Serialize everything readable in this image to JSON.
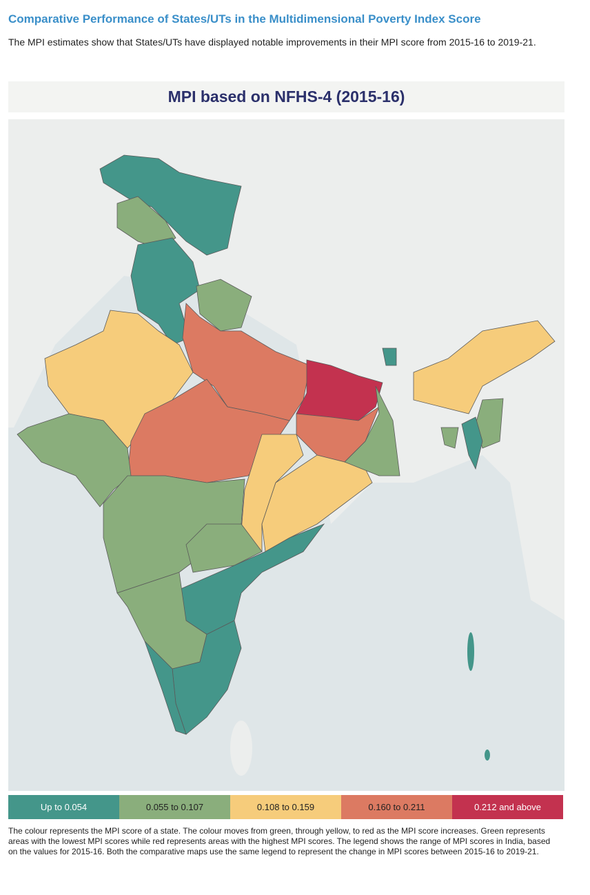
{
  "header": {
    "title": "Comparative Performance of States/UTs in the Multidimensional Poverty Index Score",
    "intro": "The MPI estimates show that States/UTs have displayed notable improvements in their MPI score from 2015-16 to 2019-21."
  },
  "map": {
    "title": "MPI based on NFHS-4 (2015-16)",
    "legend": [
      {
        "label": "Up to 0.054",
        "color": "#44968a",
        "text_color": "#ffffff"
      },
      {
        "label": "0.055 to 0.107",
        "color": "#8aae7c",
        "text_color": "#222222"
      },
      {
        "label": "0.108 to 0.159",
        "color": "#f6cc7b",
        "text_color": "#222222"
      },
      {
        "label": "0.160 to 0.211",
        "color": "#dc7a62",
        "text_color": "#222222"
      },
      {
        "label": "0.212 and above",
        "color": "#c3324f",
        "text_color": "#ffffff"
      }
    ]
  },
  "note": "The colour represents the MPI score of a state. The colour moves from green, through yellow, to red as the MPI score increases. Green represents areas with the lowest MPI scores while red represents areas with the highest MPI scores. The legend shows the range of MPI scores in India, based on the values for 2015-16. Both the comparative maps use the same legend to represent the change in MPI scores between 2015-16 to 2019-21."
}
